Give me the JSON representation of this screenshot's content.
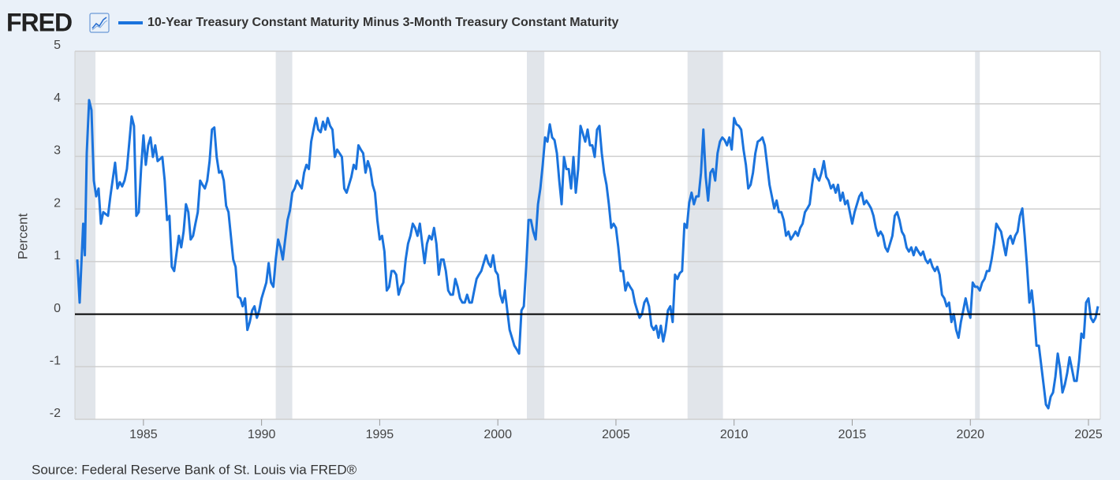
{
  "chart_data": {
    "type": "line",
    "brand": "FRED",
    "ylabel": "Percent",
    "source": "Source: Federal Reserve Bank of St. Louis via FRED®",
    "grid": true,
    "zero_line": true,
    "recession_color": "#e1e5ea",
    "recessions": [
      [
        1982.1,
        1982.97
      ],
      [
        1990.6,
        1991.3
      ],
      [
        2001.23,
        2001.97
      ],
      [
        2008.03,
        2009.53
      ],
      [
        2020.2,
        2020.4
      ]
    ],
    "xlim": [
      1982.1,
      2025.5
    ],
    "xticks": [
      1985,
      1990,
      1995,
      2000,
      2005,
      2010,
      2015,
      2020,
      2025
    ],
    "ylim": [
      -2,
      5
    ],
    "yticks": [
      -2,
      -1,
      0,
      1,
      2,
      3,
      4,
      5
    ],
    "x": [
      1982.2,
      1982.3,
      1982.45,
      1982.52,
      1982.6,
      1982.7,
      1982.8,
      1982.9,
      1983,
      1983.1,
      1983.2,
      1983.3,
      1983.5,
      1983.6,
      1983.8,
      1983.9,
      1984,
      1984.1,
      1984.2,
      1984.3,
      1984.5,
      1984.6,
      1984.7,
      1984.8,
      1984.9,
      1985,
      1985.1,
      1985.2,
      1985.3,
      1985.4,
      1985.5,
      1985.6,
      1985.8,
      1985.9,
      1986,
      1986.1,
      1986.2,
      1986.3,
      1986.5,
      1986.6,
      1986.7,
      1986.8,
      1986.9,
      1987,
      1987.1,
      1987.2,
      1987.3,
      1987.4,
      1987.5,
      1987.6,
      1987.7,
      1987.8,
      1987.9,
      1988,
      1988.1,
      1988.2,
      1988.3,
      1988.4,
      1988.5,
      1988.6,
      1988.7,
      1988.8,
      1988.9,
      1989,
      1989.1,
      1989.2,
      1989.3,
      1989.4,
      1989.5,
      1989.6,
      1989.7,
      1989.8,
      1989.9,
      1990,
      1990.1,
      1990.2,
      1990.3,
      1990.4,
      1990.5,
      1990.6,
      1990.7,
      1990.8,
      1990.9,
      1991,
      1991.1,
      1991.2,
      1991.3,
      1991.4,
      1991.5,
      1991.6,
      1991.7,
      1991.8,
      1991.9,
      1992,
      1992.1,
      1992.2,
      1992.3,
      1992.4,
      1992.5,
      1992.6,
      1992.7,
      1992.8,
      1992.9,
      1993,
      1993.1,
      1993.2,
      1993.3,
      1993.4,
      1993.5,
      1993.6,
      1993.7,
      1993.8,
      1993.9,
      1994,
      1994.1,
      1994.2,
      1994.3,
      1994.4,
      1994.5,
      1994.6,
      1994.7,
      1994.8,
      1994.9,
      1995,
      1995.1,
      1995.2,
      1995.3,
      1995.4,
      1995.5,
      1995.6,
      1995.7,
      1995.8,
      1995.9,
      1996,
      1996.1,
      1996.2,
      1996.3,
      1996.4,
      1996.5,
      1996.6,
      1996.7,
      1996.8,
      1996.9,
      1997,
      1997.1,
      1997.2,
      1997.3,
      1997.4,
      1997.5,
      1997.6,
      1997.7,
      1997.8,
      1997.9,
      1998,
      1998.1,
      1998.2,
      1998.3,
      1998.4,
      1998.5,
      1998.6,
      1998.7,
      1998.8,
      1998.9,
      1999,
      1999.1,
      1999.2,
      1999.3,
      1999.4,
      1999.5,
      1999.6,
      1999.7,
      1999.8,
      1999.9,
      2000,
      2000.1,
      2000.2,
      2000.3,
      2000.4,
      2000.5,
      2000.6,
      2000.7,
      2000.8,
      2000.9,
      2001,
      2001.1,
      2001.2,
      2001.3,
      2001.4,
      2001.5,
      2001.6,
      2001.7,
      2001.8,
      2001.9,
      2002,
      2002.1,
      2002.2,
      2002.3,
      2002.4,
      2002.5,
      2002.6,
      2002.7,
      2002.8,
      2002.9,
      2003,
      2003.1,
      2003.2,
      2003.3,
      2003.4,
      2003.5,
      2003.6,
      2003.7,
      2003.8,
      2003.9,
      2004,
      2004.1,
      2004.2,
      2004.3,
      2004.4,
      2004.5,
      2004.6,
      2004.7,
      2004.8,
      2004.9,
      2005,
      2005.1,
      2005.2,
      2005.3,
      2005.4,
      2005.5,
      2005.6,
      2005.7,
      2005.8,
      2005.9,
      2006,
      2006.1,
      2006.2,
      2006.3,
      2006.4,
      2006.5,
      2006.6,
      2006.7,
      2006.8,
      2006.9,
      2007,
      2007.1,
      2007.2,
      2007.3,
      2007.4,
      2007.5,
      2007.6,
      2007.7,
      2007.8,
      2007.9,
      2008,
      2008.1,
      2008.2,
      2008.3,
      2008.4,
      2008.5,
      2008.6,
      2008.7,
      2008.8,
      2008.9,
      2009,
      2009.1,
      2009.2,
      2009.3,
      2009.4,
      2009.5,
      2009.6,
      2009.7,
      2009.8,
      2009.9,
      2010,
      2010.1,
      2010.2,
      2010.3,
      2010.4,
      2010.5,
      2010.6,
      2010.7,
      2010.8,
      2010.9,
      2011,
      2011.1,
      2011.2,
      2011.3,
      2011.4,
      2011.5,
      2011.6,
      2011.7,
      2011.8,
      2011.9,
      2012,
      2012.1,
      2012.2,
      2012.3,
      2012.4,
      2012.5,
      2012.6,
      2012.7,
      2012.8,
      2012.9,
      2013,
      2013.1,
      2013.2,
      2013.3,
      2013.4,
      2013.5,
      2013.6,
      2013.7,
      2013.8,
      2013.9,
      2014,
      2014.1,
      2014.2,
      2014.3,
      2014.4,
      2014.5,
      2014.6,
      2014.7,
      2014.8,
      2014.9,
      2015,
      2015.1,
      2015.2,
      2015.3,
      2015.4,
      2015.5,
      2015.6,
      2015.7,
      2015.8,
      2015.9,
      2016,
      2016.1,
      2016.2,
      2016.3,
      2016.4,
      2016.5,
      2016.6,
      2016.7,
      2016.8,
      2016.9,
      2017,
      2017.1,
      2017.2,
      2017.3,
      2017.4,
      2017.5,
      2017.6,
      2017.7,
      2017.8,
      2017.9,
      2018,
      2018.1,
      2018.2,
      2018.3,
      2018.4,
      2018.5,
      2018.6,
      2018.7,
      2018.8,
      2018.9,
      2019,
      2019.1,
      2019.2,
      2019.3,
      2019.4,
      2019.5,
      2019.6,
      2019.7,
      2019.8,
      2019.9,
      2020,
      2020.1,
      2020.2,
      2020.3,
      2020.4,
      2020.5,
      2020.6,
      2020.7,
      2020.8,
      2020.9,
      2021,
      2021.1,
      2021.2,
      2021.3,
      2021.4,
      2021.5,
      2021.6,
      2021.7,
      2021.8,
      2021.9,
      2022,
      2022.1,
      2022.2,
      2022.3,
      2022.4,
      2022.5,
      2022.6,
      2022.7,
      2022.8,
      2022.9,
      2023,
      2023.1,
      2023.2,
      2023.3,
      2023.4,
      2023.5,
      2023.6,
      2023.7,
      2023.8,
      2023.9,
      2024,
      2024.1,
      2024.2,
      2024.3,
      2024.4,
      2024.5,
      2024.6,
      2024.7,
      2024.8,
      2024.9,
      2025,
      2025.1,
      2025.2,
      2025.3,
      2025.4
    ],
    "series": [
      {
        "name": "10-Year Treasury Constant Maturity Minus 3-Month Treasury Constant Maturity",
        "color": "#1a73dd",
        "values": [
          1.04,
          0.22,
          1.72,
          1.12,
          3.06,
          4.07,
          3.88,
          2.54,
          2.24,
          2.39,
          1.72,
          1.94,
          1.87,
          2.24,
          2.88,
          2.39,
          2.51,
          2.43,
          2.54,
          2.76,
          3.76,
          3.58,
          1.87,
          1.94,
          2.76,
          3.4,
          2.84,
          3.21,
          3.36,
          2.99,
          3.21,
          2.91,
          2.99,
          2.54,
          1.79,
          1.87,
          0.9,
          0.82,
          1.49,
          1.27,
          1.57,
          2.09,
          1.94,
          1.42,
          1.49,
          1.72,
          1.94,
          2.54,
          2.46,
          2.39,
          2.54,
          2.91,
          3.51,
          3.55,
          2.99,
          2.69,
          2.72,
          2.54,
          2.06,
          1.94,
          1.49,
          1.04,
          0.9,
          0.33,
          0.3,
          0.15,
          0.3,
          -0.3,
          -0.15,
          0.07,
          0.15,
          -0.07,
          0.07,
          0.3,
          0.45,
          0.6,
          0.97,
          0.6,
          0.52,
          1.04,
          1.42,
          1.27,
          1.04,
          1.42,
          1.79,
          1.97,
          2.31,
          2.39,
          2.54,
          2.46,
          2.39,
          2.69,
          2.84,
          2.76,
          3.28,
          3.51,
          3.73,
          3.51,
          3.46,
          3.66,
          3.51,
          3.73,
          3.58,
          3.51,
          2.99,
          3.13,
          3.06,
          2.99,
          2.39,
          2.31,
          2.46,
          2.61,
          2.84,
          2.76,
          3.21,
          3.13,
          3.06,
          2.69,
          2.91,
          2.76,
          2.46,
          2.31,
          1.79,
          1.42,
          1.49,
          1.19,
          0.45,
          0.52,
          0.82,
          0.82,
          0.75,
          0.37,
          0.52,
          0.6,
          1.04,
          1.34,
          1.49,
          1.72,
          1.64,
          1.49,
          1.72,
          1.34,
          0.97,
          1.34,
          1.49,
          1.42,
          1.64,
          1.34,
          0.75,
          1.04,
          1.04,
          0.82,
          0.45,
          0.37,
          0.37,
          0.67,
          0.52,
          0.3,
          0.22,
          0.22,
          0.37,
          0.22,
          0.22,
          0.45,
          0.67,
          0.75,
          0.82,
          0.97,
          1.12,
          0.97,
          0.9,
          1.12,
          0.82,
          0.75,
          0.37,
          0.22,
          0.45,
          0.07,
          -0.3,
          -0.45,
          -0.6,
          -0.67,
          -0.75,
          0.07,
          0.15,
          0.9,
          1.79,
          1.79,
          1.57,
          1.42,
          2.09,
          2.39,
          2.84,
          3.36,
          3.28,
          3.61,
          3.36,
          3.31,
          3.06,
          2.54,
          2.09,
          2.99,
          2.76,
          2.76,
          2.39,
          2.99,
          2.31,
          2.76,
          3.58,
          3.43,
          3.28,
          3.51,
          3.21,
          3.21,
          2.99,
          3.51,
          3.58,
          3.06,
          2.69,
          2.46,
          2.09,
          1.64,
          1.72,
          1.64,
          1.27,
          0.82,
          0.82,
          0.45,
          0.6,
          0.52,
          0.45,
          0.22,
          0.07,
          -0.07,
          0.0,
          0.22,
          0.3,
          0.15,
          -0.22,
          -0.3,
          -0.22,
          -0.45,
          -0.22,
          -0.52,
          -0.3,
          0.07,
          0.15,
          -0.15,
          0.75,
          0.67,
          0.78,
          0.82,
          1.72,
          1.64,
          2.12,
          2.31,
          2.09,
          2.24,
          2.24,
          2.69,
          3.51,
          2.61,
          2.16,
          2.69,
          2.76,
          2.54,
          3.06,
          3.28,
          3.36,
          3.31,
          3.21,
          3.36,
          3.13,
          3.73,
          3.61,
          3.58,
          3.51,
          3.13,
          2.84,
          2.39,
          2.46,
          2.69,
          3.06,
          3.28,
          3.31,
          3.36,
          3.21,
          2.84,
          2.46,
          2.24,
          2.01,
          2.16,
          1.94,
          1.94,
          1.79,
          1.49,
          1.57,
          1.42,
          1.49,
          1.57,
          1.49,
          1.64,
          1.72,
          1.94,
          2.01,
          2.09,
          2.46,
          2.76,
          2.61,
          2.54,
          2.69,
          2.91,
          2.61,
          2.54,
          2.39,
          2.46,
          2.31,
          2.46,
          2.16,
          2.31,
          2.09,
          2.16,
          1.94,
          1.72,
          1.94,
          2.09,
          2.24,
          2.31,
          2.09,
          2.16,
          2.09,
          2.01,
          1.87,
          1.64,
          1.49,
          1.57,
          1.49,
          1.27,
          1.19,
          1.34,
          1.49,
          1.87,
          1.94,
          1.79,
          1.57,
          1.49,
          1.27,
          1.19,
          1.27,
          1.12,
          1.27,
          1.19,
          1.12,
          1.19,
          1.04,
          0.97,
          1.04,
          0.9,
          0.82,
          0.9,
          0.75,
          0.37,
          0.3,
          0.15,
          0.22,
          -0.15,
          0.0,
          -0.3,
          -0.45,
          -0.15,
          0.07,
          0.3,
          0.07,
          -0.07,
          0.6,
          0.52,
          0.52,
          0.45,
          0.6,
          0.67,
          0.82,
          0.82,
          1.04,
          1.34,
          1.72,
          1.64,
          1.57,
          1.34,
          1.12,
          1.42,
          1.49,
          1.34,
          1.49,
          1.57,
          1.87,
          2.01,
          1.49,
          0.9,
          0.22,
          0.45,
          0.0,
          -0.6,
          -0.6,
          -0.97,
          -1.34,
          -1.72,
          -1.79,
          -1.57,
          -1.49,
          -1.19,
          -0.75,
          -1.04,
          -1.49,
          -1.34,
          -1.12,
          -0.82,
          -1.04,
          -1.27,
          -1.27,
          -0.9,
          -0.37,
          -0.45,
          0.22,
          0.3,
          -0.07,
          -0.15,
          -0.07,
          0.15
        ]
      }
    ]
  }
}
